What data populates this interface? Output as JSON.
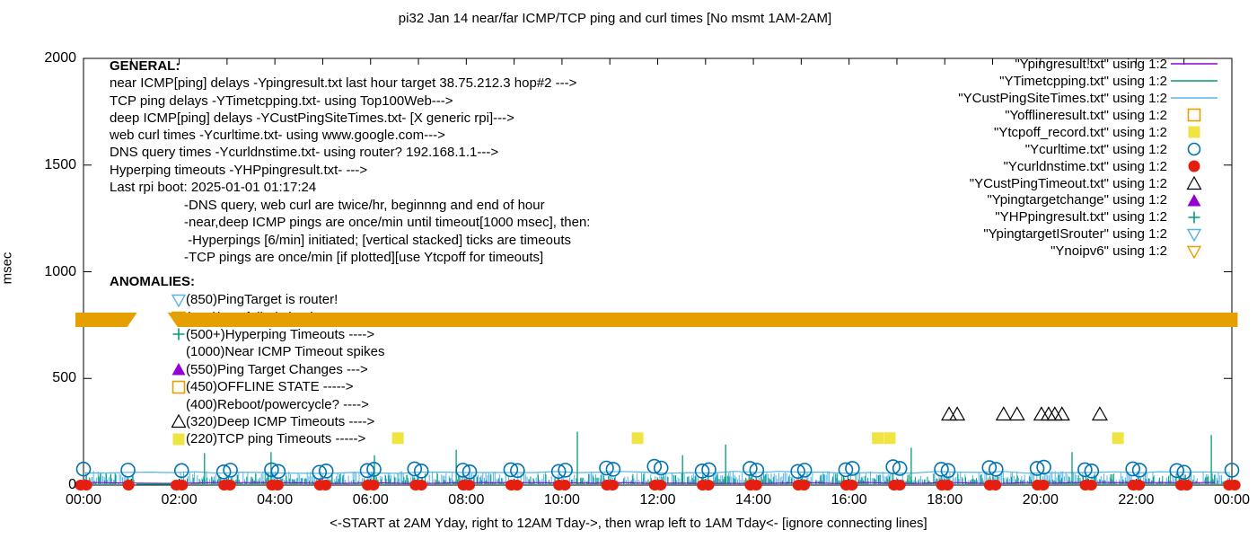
{
  "title": "pi32 Jan 14  near/far ICMP/TCP ping and curl times [No msmt 1AM-2AM]",
  "colors": {
    "purple": "#9400D3",
    "green": "#009E73",
    "lightblue": "#56B4E9",
    "orange": "#E69F00",
    "yellow": "#F0E442",
    "blue": "#0072B2",
    "red": "#E51E10",
    "black": "#000000"
  },
  "general": {
    "heading": "GENERAL:",
    "lines": [
      "near ICMP[ping] delays -Ypingresult.txt last hour target 38.75.212.3 hop#2 --->",
      "TCP ping delays -YTimetcpping.txt- using Top100Web--->",
      "deep ICMP[ping] delays -YCustPingSiteTimes.txt- [X generic rpi]--->",
      "web curl times -Ycurltime.txt- using www.google.com--->",
      "DNS query times -Ycurldnstime.txt- using router? 192.168.1.1--->",
      "Hyperping timeouts -YHPpingresult.txt- --->",
      "Last rpi boot: 2025-01-01 01:17:24"
    ]
  },
  "notes": [
    "-DNS query, web curl are twice/hr, beginnng and end of hour",
    "-near,deep ICMP pings are once/min until timeout[1000 msec], then:",
    " -Hyperpings [6/min] initiated; [vertical stacked] ticks are timeouts",
    "-TCP pings are once/min [if plotted][use Ytcpoff for timeouts]"
  ],
  "anomalies": {
    "heading": "ANOMALIES:",
    "items": [
      {
        "marker": "tri-down-open",
        "color": "lightblue",
        "text": "(850)PingTarget is router!"
      },
      {
        "marker": "tri-down-open",
        "color": "orange",
        "text": "(785)ipv6 failed check"
      },
      {
        "marker": "plus",
        "color": "green",
        "text": "(500+)Hyperping Timeouts ---->"
      },
      {
        "marker": "none",
        "color": "black",
        "text": "(1000)Near ICMP Timeout spikes"
      },
      {
        "marker": "triangle",
        "color": "purple",
        "text": "(550)Ping Target Changes --->"
      },
      {
        "marker": "square-open",
        "color": "orange",
        "text": "(450)OFFLINE STATE ----->"
      },
      {
        "marker": "none",
        "color": "black",
        "text": "(400)Reboot/powercycle? ---->"
      },
      {
        "marker": "triangle-open",
        "color": "black",
        "text": "(320)Deep ICMP Timeouts ---->"
      },
      {
        "marker": "square",
        "color": "yellow",
        "text": "(220)TCP ping Timeouts ----->"
      }
    ]
  },
  "legend": [
    {
      "label": "\"Ypingresult.txt\" using 1:2",
      "marker": "line",
      "color": "purple"
    },
    {
      "label": "\"YTimetcpping.txt\" using 1:2",
      "marker": "line",
      "color": "green"
    },
    {
      "label": "\"YCustPingSiteTimes.txt\" using 1:2",
      "marker": "line",
      "color": "lightblue"
    },
    {
      "label": "\"Yofflineresult.txt\" using 1:2",
      "marker": "square-open",
      "color": "orange"
    },
    {
      "label": "\"Ytcpoff_record.txt\" using 1:2",
      "marker": "square",
      "color": "yellow"
    },
    {
      "label": "\"Ycurltime.txt\" using 1:2",
      "marker": "circle-open",
      "color": "blue"
    },
    {
      "label": "\"Ycurldnstime.txt\" using 1:2",
      "marker": "circle",
      "color": "red"
    },
    {
      "label": "\"YCustPingTimeout.txt\" using 1:2",
      "marker": "triangle-open",
      "color": "black"
    },
    {
      "label": "\"Ypingtargetchange\" using 1:2",
      "marker": "triangle",
      "color": "purple"
    },
    {
      "label": "\"YHPpingresult.txt\" using 1:2",
      "marker": "plus",
      "color": "green"
    },
    {
      "label": "\"YpingtargetISrouter\" using 1:2",
      "marker": "tri-down-open",
      "color": "lightblue"
    },
    {
      "label": "\"Ynoipv6\" using 1:2",
      "marker": "tri-down-open",
      "color": "orange"
    }
  ],
  "chart_data": {
    "type": "line",
    "title": "pi32 Jan 14  near/far ICMP/TCP ping and curl times [No msmt 1AM-2AM]",
    "xlabel": "<-START at 2AM Yday, right to 12AM Tday->, then wrap left to 1AM Tday<- [ignore connecting lines]",
    "ylabel": "msec",
    "x_axis": {
      "range_hours": [
        0,
        24
      ],
      "tick_labels": [
        "00:00",
        "02:00",
        "04:00",
        "06:00",
        "08:00",
        "10:00",
        "12:00",
        "14:00",
        "16:00",
        "18:00",
        "20:00",
        "22:00",
        "00:00"
      ],
      "minor_tick_every_hours": 1
    },
    "y_axis": {
      "range": [
        0,
        2000
      ],
      "ticks": [
        0,
        500,
        1000,
        1500,
        2000
      ]
    },
    "no_measurement_gap_hours": [
      1.05,
      2.0
    ],
    "noise_band": {
      "green_series": "YTimetcpping TCP ping delays",
      "green_max_msec": 55,
      "lightblue_series": "YCustPingSiteTimes deep ICMP",
      "lightblue_line_msec": 60,
      "purple_series": "Ypingresult near ICMP",
      "purple_baseline_msec": 7
    },
    "noipv6_band": {
      "msec": 775,
      "segments_hours": [
        [
          -0.17,
          1.12
        ],
        [
          1.76,
          24.12
        ]
      ]
    },
    "curl_circles_h_msec": [
      [
        0,
        75
      ],
      [
        0.93,
        70
      ],
      [
        2.05,
        68
      ],
      [
        2.93,
        62
      ],
      [
        3.07,
        70
      ],
      [
        3.93,
        72
      ],
      [
        4.07,
        64
      ],
      [
        4.93,
        60
      ],
      [
        5.07,
        66
      ],
      [
        5.93,
        68
      ],
      [
        6.07,
        74
      ],
      [
        6.92,
        76
      ],
      [
        7.06,
        66
      ],
      [
        7.93,
        70
      ],
      [
        8.07,
        62
      ],
      [
        8.93,
        72
      ],
      [
        9.07,
        68
      ],
      [
        9.93,
        64
      ],
      [
        10.07,
        70
      ],
      [
        10.93,
        80
      ],
      [
        11.07,
        74
      ],
      [
        11.93,
        88
      ],
      [
        12.07,
        80
      ],
      [
        12.93,
        66
      ],
      [
        13.07,
        72
      ],
      [
        13.93,
        78
      ],
      [
        14.07,
        70
      ],
      [
        14.93,
        64
      ],
      [
        15.07,
        70
      ],
      [
        15.93,
        72
      ],
      [
        16.07,
        78
      ],
      [
        16.92,
        86
      ],
      [
        17.06,
        78
      ],
      [
        17.93,
        74
      ],
      [
        18.07,
        68
      ],
      [
        18.93,
        82
      ],
      [
        19.07,
        74
      ],
      [
        19.93,
        78
      ],
      [
        20.07,
        84
      ],
      [
        20.93,
        72
      ],
      [
        21.07,
        66
      ],
      [
        21.93,
        76
      ],
      [
        22.07,
        70
      ],
      [
        22.85,
        68
      ],
      [
        23.0,
        60
      ],
      [
        24,
        70
      ]
    ],
    "dns_dots_hours": [
      0,
      1,
      2,
      3,
      4,
      5,
      6,
      7,
      8,
      9,
      10,
      11,
      12,
      13,
      14,
      15,
      16,
      17,
      18,
      19,
      20,
      21,
      22,
      23,
      24
    ],
    "dns_dots_msec": 0,
    "tcp_timeout_squares_h_msec": [
      [
        6.57,
        220
      ],
      [
        11.58,
        220
      ],
      [
        16.6,
        220
      ],
      [
        16.85,
        220
      ],
      [
        21.62,
        220
      ]
    ],
    "deep_icmp_timeout_triangles_h_msec": [
      [
        18.09,
        320
      ],
      [
        18.26,
        320
      ],
      [
        19.23,
        320
      ],
      [
        19.51,
        320
      ],
      [
        20.02,
        320
      ],
      [
        20.17,
        320
      ],
      [
        20.3,
        320
      ],
      [
        20.45,
        320
      ],
      [
        21.24,
        320
      ]
    ],
    "green_spikes_h_msec": [
      [
        2.53,
        150
      ],
      [
        3.92,
        155
      ],
      [
        6.08,
        140
      ],
      [
        7.79,
        165
      ],
      [
        10.32,
        250
      ],
      [
        12.52,
        140
      ],
      [
        13.42,
        190
      ],
      [
        17.3,
        175
      ],
      [
        20.66,
        155
      ],
      [
        23.57,
        235
      ]
    ]
  }
}
